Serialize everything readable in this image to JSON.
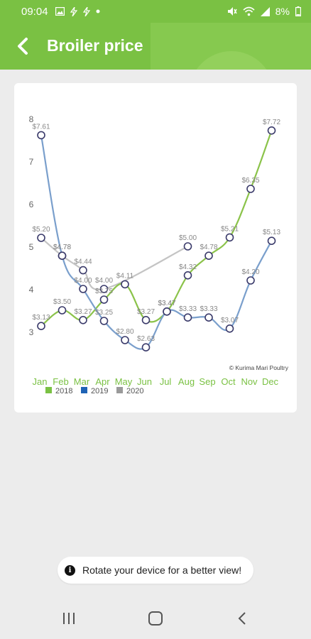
{
  "status_bar": {
    "time": "09:04",
    "battery": "8%",
    "icons": [
      "image-icon",
      "lightning-icon",
      "lightning-icon",
      "dot-icon",
      "mute-icon",
      "wifi-icon",
      "signal-icon",
      "battery-icon"
    ]
  },
  "app_bar": {
    "title": "Broiler price",
    "back_icon": "chevron-left-icon",
    "color": "#7ac143"
  },
  "chart_data": {
    "type": "line",
    "categories": [
      "Jan",
      "Feb",
      "Mar",
      "Apr",
      "May",
      "Jun",
      "Jul",
      "Aug",
      "Sep",
      "Oct",
      "Nov",
      "Dec"
    ],
    "ylim": [
      3,
      8
    ],
    "yticks": [
      "3",
      "4",
      "5",
      "6",
      "7",
      "8"
    ],
    "series": [
      {
        "name": "2018",
        "color": "#8bc34a",
        "values": [
          3.13,
          3.5,
          3.27,
          3.75,
          4.11,
          3.27,
          3.47,
          4.32,
          4.78,
          5.21,
          6.35,
          7.72
        ],
        "labels": [
          "$3.13",
          "$3.50",
          "$3.27",
          "$3.75",
          "$4.11",
          "$3.27",
          "$3.47",
          "$4.32",
          "$4.78",
          "$5.21",
          "$6.35",
          "$7.72"
        ]
      },
      {
        "name": "2019",
        "color": "#7a9fcc",
        "values": [
          7.61,
          4.78,
          4.0,
          3.25,
          2.8,
          2.63,
          3.47,
          3.33,
          3.33,
          3.07,
          4.2,
          5.13
        ],
        "labels": [
          "$7.61",
          "$4.78",
          "$4.00",
          "$3.25",
          "$2.80",
          "$2.63",
          "$3.47",
          "$3.33",
          "$3.33",
          "$3.07",
          "$4.20",
          "$5.13"
        ]
      },
      {
        "name": "2020",
        "color": "#c4c4c4",
        "values": [
          5.2,
          4.78,
          4.44,
          4.0,
          null,
          null,
          null,
          5.0,
          null,
          null,
          null,
          null
        ],
        "labels": [
          "$5.20",
          "$4.78",
          "$4.44",
          "$4.00",
          "",
          "",
          "",
          "$5.00",
          "",
          "",
          "",
          ""
        ]
      }
    ],
    "legend": [
      {
        "name": "2018",
        "color": "#7ac143"
      },
      {
        "name": "2019",
        "color": "#1f63b5"
      },
      {
        "name": "2020",
        "color": "#9a9a9a"
      }
    ],
    "legend_position": "bottom-left",
    "annotation": "© Kurima Mari Poultry"
  },
  "toast": {
    "text": "Rotate your device for a better view!",
    "icon": "info-icon"
  },
  "nav_bar": {
    "icons": [
      "recent-apps-icon",
      "home-icon",
      "back-icon"
    ]
  }
}
